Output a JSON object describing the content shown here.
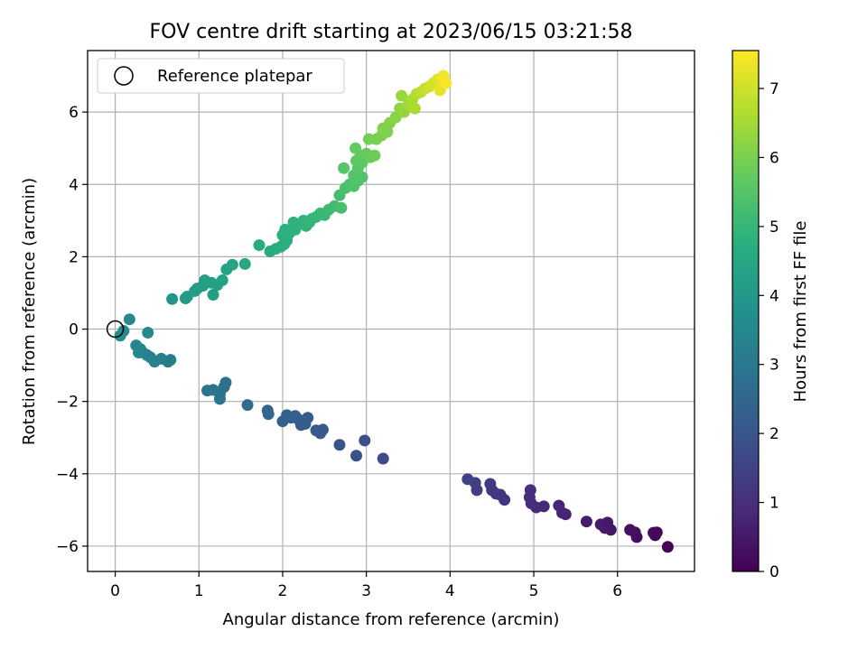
{
  "chart_data": {
    "type": "scatter",
    "title": "FOV centre drift starting at 2023/06/15 03:21:58",
    "xlabel": "Angular distance from reference (arcmin)",
    "ylabel": "Rotation from reference (arcmin)",
    "xlim": [
      -0.33,
      6.92
    ],
    "ylim": [
      -6.7,
      7.7
    ],
    "x_ticks": [
      0,
      1,
      2,
      3,
      4,
      5,
      6
    ],
    "y_ticks": [
      -6,
      -4,
      -2,
      0,
      2,
      4,
      6
    ],
    "x_tick_labels": [
      "0",
      "1",
      "2",
      "3",
      "4",
      "5",
      "6"
    ],
    "y_tick_labels": [
      "−6",
      "−4",
      "−2",
      "0",
      "2",
      "4",
      "6"
    ],
    "grid": true,
    "legend": {
      "position": "upper-left",
      "label": "Reference platepar"
    },
    "reference_point": {
      "x": 0,
      "y": 0
    },
    "colorbar": {
      "label": "Hours from first FF file",
      "colormap": "viridis",
      "range": [
        0,
        7.55
      ],
      "ticks": [
        0,
        1,
        2,
        3,
        4,
        5,
        6,
        7
      ],
      "tick_labels": [
        "0",
        "1",
        "2",
        "3",
        "4",
        "5",
        "6",
        "7"
      ]
    },
    "points": [
      {
        "x": 6.6,
        "y": -6.02,
        "t": 0.05
      },
      {
        "x": 6.47,
        "y": -5.62,
        "t": 0.12
      },
      {
        "x": 6.45,
        "y": -5.7,
        "t": 0.15
      },
      {
        "x": 6.43,
        "y": -5.63,
        "t": 0.18
      },
      {
        "x": 6.23,
        "y": -5.75,
        "t": 0.25
      },
      {
        "x": 6.21,
        "y": -5.62,
        "t": 0.3
      },
      {
        "x": 6.15,
        "y": -5.55,
        "t": 0.35
      },
      {
        "x": 5.92,
        "y": -5.55,
        "t": 0.45
      },
      {
        "x": 5.88,
        "y": -5.35,
        "t": 0.5
      },
      {
        "x": 5.85,
        "y": -5.5,
        "t": 0.52
      },
      {
        "x": 5.8,
        "y": -5.4,
        "t": 0.55
      },
      {
        "x": 5.63,
        "y": -5.32,
        "t": 0.62
      },
      {
        "x": 5.38,
        "y": -5.12,
        "t": 0.7
      },
      {
        "x": 5.34,
        "y": -5.08,
        "t": 0.74
      },
      {
        "x": 5.3,
        "y": -4.88,
        "t": 0.78
      },
      {
        "x": 5.12,
        "y": -4.9,
        "t": 0.85
      },
      {
        "x": 5.03,
        "y": -4.93,
        "t": 0.9
      },
      {
        "x": 4.97,
        "y": -4.82,
        "t": 0.95
      },
      {
        "x": 4.95,
        "y": -4.65,
        "t": 0.98
      },
      {
        "x": 4.96,
        "y": -4.45,
        "t": 1.0
      },
      {
        "x": 4.65,
        "y": -4.72,
        "t": 1.1
      },
      {
        "x": 4.6,
        "y": -4.58,
        "t": 1.15
      },
      {
        "x": 4.55,
        "y": -4.55,
        "t": 1.18
      },
      {
        "x": 4.5,
        "y": -4.45,
        "t": 1.22
      },
      {
        "x": 4.48,
        "y": -4.28,
        "t": 1.25
      },
      {
        "x": 4.32,
        "y": -4.45,
        "t": 1.35
      },
      {
        "x": 4.3,
        "y": -4.25,
        "t": 1.4
      },
      {
        "x": 4.21,
        "y": -4.15,
        "t": 1.45
      },
      {
        "x": 3.2,
        "y": -3.58,
        "t": 1.7
      },
      {
        "x": 2.98,
        "y": -3.08,
        "t": 1.8
      },
      {
        "x": 2.88,
        "y": -3.5,
        "t": 1.85
      },
      {
        "x": 2.68,
        "y": -3.2,
        "t": 1.95
      },
      {
        "x": 2.48,
        "y": -2.78,
        "t": 2.05
      },
      {
        "x": 2.45,
        "y": -2.88,
        "t": 2.08
      },
      {
        "x": 2.4,
        "y": -2.8,
        "t": 2.1
      },
      {
        "x": 2.3,
        "y": -2.45,
        "t": 2.15
      },
      {
        "x": 2.27,
        "y": -2.62,
        "t": 2.18
      },
      {
        "x": 2.22,
        "y": -2.55,
        "t": 2.2
      },
      {
        "x": 2.18,
        "y": -2.48,
        "t": 2.22
      },
      {
        "x": 2.15,
        "y": -2.4,
        "t": 2.25
      },
      {
        "x": 2.1,
        "y": -2.45,
        "t": 2.28
      },
      {
        "x": 2.05,
        "y": -2.38,
        "t": 2.3
      },
      {
        "x": 2.0,
        "y": -2.55,
        "t": 2.32
      },
      {
        "x": 2.22,
        "y": -2.65,
        "t": 2.2
      },
      {
        "x": 1.82,
        "y": -2.25,
        "t": 2.45
      },
      {
        "x": 1.83,
        "y": -2.35,
        "t": 2.48
      },
      {
        "x": 1.58,
        "y": -2.1,
        "t": 2.6
      },
      {
        "x": 1.32,
        "y": -1.48,
        "t": 2.75
      },
      {
        "x": 1.3,
        "y": -1.6,
        "t": 2.78
      },
      {
        "x": 1.25,
        "y": -1.8,
        "t": 2.82
      },
      {
        "x": 1.25,
        "y": -1.93,
        "t": 2.85
      },
      {
        "x": 1.17,
        "y": -1.68,
        "t": 2.9
      },
      {
        "x": 1.1,
        "y": -1.7,
        "t": 2.93
      },
      {
        "x": 0.66,
        "y": -0.85,
        "t": 3.15
      },
      {
        "x": 0.63,
        "y": -0.9,
        "t": 3.18
      },
      {
        "x": 0.55,
        "y": -0.82,
        "t": 3.22
      },
      {
        "x": 0.47,
        "y": -0.9,
        "t": 3.26
      },
      {
        "x": 0.42,
        "y": -0.78,
        "t": 3.3
      },
      {
        "x": 0.38,
        "y": -0.72,
        "t": 3.33
      },
      {
        "x": 0.33,
        "y": -0.65,
        "t": 3.36
      },
      {
        "x": 0.3,
        "y": -0.55,
        "t": 3.4
      },
      {
        "x": 0.25,
        "y": -0.45,
        "t": 3.43
      },
      {
        "x": 0.28,
        "y": -0.65,
        "t": 3.46
      },
      {
        "x": 0.39,
        "y": -0.1,
        "t": 3.5
      },
      {
        "x": 0.17,
        "y": 0.27,
        "t": 3.55
      },
      {
        "x": 0.1,
        "y": -0.05,
        "t": 3.58
      },
      {
        "x": 0.06,
        "y": -0.18,
        "t": 3.6
      },
      {
        "x": 0.68,
        "y": 0.83,
        "t": 3.95
      },
      {
        "x": 0.84,
        "y": 0.85,
        "t": 4.05
      },
      {
        "x": 0.86,
        "y": 0.9,
        "t": 4.08
      },
      {
        "x": 0.95,
        "y": 1.05,
        "t": 4.12
      },
      {
        "x": 0.98,
        "y": 1.12,
        "t": 4.15
      },
      {
        "x": 1.05,
        "y": 1.2,
        "t": 4.18
      },
      {
        "x": 1.07,
        "y": 1.35,
        "t": 4.2
      },
      {
        "x": 1.15,
        "y": 1.28,
        "t": 4.22
      },
      {
        "x": 1.17,
        "y": 0.95,
        "t": 4.24
      },
      {
        "x": 1.22,
        "y": 1.22,
        "t": 4.26
      },
      {
        "x": 1.28,
        "y": 1.35,
        "t": 4.3
      },
      {
        "x": 1.33,
        "y": 1.65,
        "t": 4.35
      },
      {
        "x": 1.4,
        "y": 1.78,
        "t": 4.4
      },
      {
        "x": 1.55,
        "y": 1.8,
        "t": 4.45
      },
      {
        "x": 1.72,
        "y": 2.32,
        "t": 4.55
      },
      {
        "x": 1.85,
        "y": 2.15,
        "t": 4.62
      },
      {
        "x": 1.92,
        "y": 2.22,
        "t": 4.66
      },
      {
        "x": 1.98,
        "y": 2.28,
        "t": 4.7
      },
      {
        "x": 2.02,
        "y": 2.35,
        "t": 4.72
      },
      {
        "x": 2.05,
        "y": 2.45,
        "t": 4.74
      },
      {
        "x": 2.0,
        "y": 2.6,
        "t": 4.76
      },
      {
        "x": 2.03,
        "y": 2.75,
        "t": 4.78
      },
      {
        "x": 2.08,
        "y": 2.65,
        "t": 4.8
      },
      {
        "x": 2.15,
        "y": 2.75,
        "t": 4.82
      },
      {
        "x": 2.13,
        "y": 2.95,
        "t": 4.84
      },
      {
        "x": 2.2,
        "y": 2.9,
        "t": 4.86
      },
      {
        "x": 2.25,
        "y": 3.0,
        "t": 4.88
      },
      {
        "x": 2.28,
        "y": 2.85,
        "t": 4.9
      },
      {
        "x": 2.32,
        "y": 2.95,
        "t": 4.92
      },
      {
        "x": 2.4,
        "y": 3.1,
        "t": 4.95
      },
      {
        "x": 2.35,
        "y": 3.05,
        "t": 4.97
      },
      {
        "x": 2.45,
        "y": 3.2,
        "t": 5.0
      },
      {
        "x": 2.5,
        "y": 3.15,
        "t": 5.05
      },
      {
        "x": 2.55,
        "y": 3.3,
        "t": 5.1
      },
      {
        "x": 2.62,
        "y": 3.4,
        "t": 5.15
      },
      {
        "x": 2.68,
        "y": 3.7,
        "t": 5.22
      },
      {
        "x": 2.7,
        "y": 3.35,
        "t": 5.25
      },
      {
        "x": 2.75,
        "y": 3.9,
        "t": 5.3
      },
      {
        "x": 2.8,
        "y": 4.0,
        "t": 5.35
      },
      {
        "x": 2.85,
        "y": 3.95,
        "t": 5.38
      },
      {
        "x": 2.9,
        "y": 4.1,
        "t": 5.42
      },
      {
        "x": 2.95,
        "y": 4.2,
        "t": 5.45
      },
      {
        "x": 2.85,
        "y": 4.25,
        "t": 5.48
      },
      {
        "x": 2.73,
        "y": 4.45,
        "t": 5.52
      },
      {
        "x": 2.9,
        "y": 4.45,
        "t": 5.55
      },
      {
        "x": 2.88,
        "y": 4.65,
        "t": 5.58
      },
      {
        "x": 2.95,
        "y": 4.6,
        "t": 5.62
      },
      {
        "x": 2.93,
        "y": 4.8,
        "t": 5.66
      },
      {
        "x": 2.87,
        "y": 5.0,
        "t": 5.7
      },
      {
        "x": 3.0,
        "y": 4.85,
        "t": 5.74
      },
      {
        "x": 3.05,
        "y": 4.75,
        "t": 5.78
      },
      {
        "x": 3.1,
        "y": 4.8,
        "t": 5.82
      },
      {
        "x": 3.03,
        "y": 5.25,
        "t": 5.9
      },
      {
        "x": 3.12,
        "y": 5.25,
        "t": 5.95
      },
      {
        "x": 3.18,
        "y": 5.35,
        "t": 6.0
      },
      {
        "x": 3.25,
        "y": 5.45,
        "t": 6.05
      },
      {
        "x": 3.2,
        "y": 5.55,
        "t": 6.08
      },
      {
        "x": 3.28,
        "y": 5.7,
        "t": 6.12
      },
      {
        "x": 3.35,
        "y": 5.85,
        "t": 6.18
      },
      {
        "x": 3.4,
        "y": 6.1,
        "t": 6.25
      },
      {
        "x": 3.45,
        "y": 6.0,
        "t": 6.3
      },
      {
        "x": 3.42,
        "y": 6.45,
        "t": 6.38
      },
      {
        "x": 3.5,
        "y": 6.2,
        "t": 6.45
      },
      {
        "x": 3.55,
        "y": 6.35,
        "t": 6.55
      },
      {
        "x": 3.58,
        "y": 6.1,
        "t": 6.6
      },
      {
        "x": 3.6,
        "y": 6.5,
        "t": 6.7
      },
      {
        "x": 3.65,
        "y": 6.55,
        "t": 6.78
      },
      {
        "x": 3.7,
        "y": 6.65,
        "t": 6.88
      },
      {
        "x": 3.75,
        "y": 6.7,
        "t": 6.98
      },
      {
        "x": 3.8,
        "y": 6.8,
        "t": 7.08
      },
      {
        "x": 3.85,
        "y": 6.9,
        "t": 7.18
      },
      {
        "x": 3.88,
        "y": 6.6,
        "t": 7.25
      },
      {
        "x": 3.9,
        "y": 6.85,
        "t": 7.32
      },
      {
        "x": 3.92,
        "y": 7.0,
        "t": 7.4
      },
      {
        "x": 3.95,
        "y": 6.8,
        "t": 7.48
      }
    ]
  }
}
